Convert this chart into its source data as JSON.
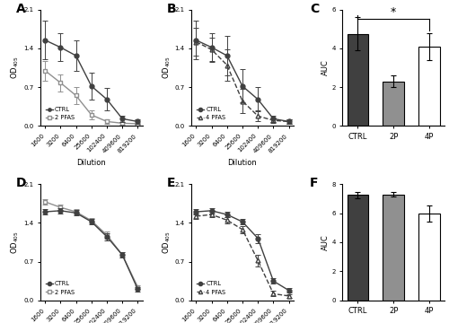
{
  "dilutions": [
    1600,
    3200,
    6400,
    25600,
    102400,
    409600,
    819200
  ],
  "dilution_labels": [
    "1600",
    "3200",
    "6400",
    "25600",
    "102400",
    "409600",
    "819200"
  ],
  "A_ctrl_mean": [
    1.55,
    1.42,
    1.27,
    0.72,
    0.48,
    0.13,
    0.08
  ],
  "A_ctrl_err": [
    0.35,
    0.25,
    0.28,
    0.25,
    0.2,
    0.06,
    0.04
  ],
  "A_2p_mean": [
    1.0,
    0.78,
    0.55,
    0.2,
    0.08,
    0.05,
    0.04
  ],
  "A_2p_err": [
    0.18,
    0.15,
    0.15,
    0.08,
    0.04,
    0.02,
    0.02
  ],
  "B_ctrl_mean": [
    1.55,
    1.42,
    1.27,
    0.72,
    0.48,
    0.13,
    0.08
  ],
  "B_ctrl_err": [
    0.35,
    0.25,
    0.35,
    0.3,
    0.22,
    0.06,
    0.04
  ],
  "B_4p_mean": [
    1.52,
    1.38,
    1.1,
    0.45,
    0.18,
    0.1,
    0.08
  ],
  "B_4p_err": [
    0.25,
    0.22,
    0.28,
    0.22,
    0.1,
    0.05,
    0.04
  ],
  "C_bars": [
    4.75,
    2.3,
    4.1
  ],
  "C_errs": [
    0.85,
    0.3,
    0.7
  ],
  "C_colors": [
    "#404040",
    "#909090",
    "#ffffff"
  ],
  "C_labels": [
    "CTRL",
    "2P",
    "4P"
  ],
  "C_ylim": [
    0,
    6
  ],
  "C_yticks": [
    0,
    2,
    4,
    6
  ],
  "D_ctrl_mean": [
    1.6,
    1.62,
    1.58,
    1.42,
    1.15,
    0.82,
    0.2
  ],
  "D_ctrl_err": [
    0.05,
    0.05,
    0.05,
    0.05,
    0.06,
    0.05,
    0.04
  ],
  "D_2p_mean": [
    1.78,
    1.68,
    1.6,
    1.44,
    1.18,
    0.82,
    0.24
  ],
  "D_2p_err": [
    0.05,
    0.05,
    0.05,
    0.05,
    0.06,
    0.05,
    0.04
  ],
  "E_ctrl_mean": [
    1.6,
    1.62,
    1.55,
    1.42,
    1.12,
    0.35,
    0.18
  ],
  "E_ctrl_err": [
    0.05,
    0.05,
    0.05,
    0.05,
    0.08,
    0.05,
    0.04
  ],
  "E_4p_mean": [
    1.52,
    1.55,
    1.45,
    1.28,
    0.72,
    0.12,
    0.08
  ],
  "E_4p_err": [
    0.05,
    0.05,
    0.06,
    0.06,
    0.1,
    0.05,
    0.03
  ],
  "F_bars": [
    7.25,
    7.3,
    6.0
  ],
  "F_errs": [
    0.2,
    0.18,
    0.55
  ],
  "F_colors": [
    "#404040",
    "#909090",
    "#ffffff"
  ],
  "F_labels": [
    "CTRL",
    "2P",
    "4P"
  ],
  "F_ylim": [
    0,
    8
  ],
  "F_yticks": [
    0,
    2,
    4,
    6,
    8
  ],
  "dark_color": "#404040",
  "mid_color": "#909090"
}
